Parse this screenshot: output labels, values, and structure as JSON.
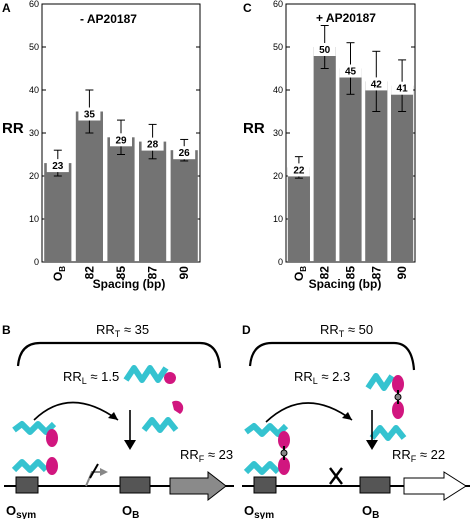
{
  "chart_data": [
    {
      "type": "bar",
      "panel": "A",
      "title": "- AP20187",
      "ylabel": "RR",
      "xlabel": "Spacing (bp)",
      "categories": [
        "O",
        "82",
        "85",
        "87",
        "90"
      ],
      "category_subscripts": [
        "B",
        "",
        "",
        "",
        ""
      ],
      "values": [
        23,
        35,
        29,
        28,
        26
      ],
      "errors": [
        3,
        5,
        4,
        4,
        2.5
      ],
      "labels": [
        "23",
        "35",
        "29",
        "28",
        "26"
      ],
      "ylim": [
        0,
        60
      ],
      "yticks": [
        0,
        10,
        20,
        30,
        40,
        50,
        60
      ],
      "bar_color": "#737373"
    },
    {
      "type": "bar",
      "panel": "C",
      "title": "+ AP20187",
      "ylabel": "RR",
      "xlabel": "Spacing (bp)",
      "categories": [
        "O",
        "82",
        "85",
        "87",
        "90"
      ],
      "category_subscripts": [
        "B",
        "",
        "",
        "",
        ""
      ],
      "values": [
        22,
        50,
        45,
        42,
        41
      ],
      "errors": [
        2.5,
        5,
        6,
        7,
        6
      ],
      "labels": [
        "22",
        "50",
        "45",
        "42",
        "41"
      ],
      "ylim": [
        0,
        60
      ],
      "yticks": [
        0,
        10,
        20,
        30,
        40,
        50,
        60
      ],
      "bar_color": "#737373"
    }
  ],
  "diagrams": [
    {
      "panel": "B",
      "rr_t": "RR",
      "rr_t_sub": "T",
      "rr_t_val": " ≈ 35",
      "rr_l": "RR",
      "rr_l_sub": "L",
      "rr_l_val": " ≈ 1.5",
      "rr_f": "RR",
      "rr_f_sub": "F",
      "rr_f_val": " ≈ 23",
      "osym": "O",
      "osym_sub": "sym",
      "ob": "O",
      "ob_sub": "B"
    },
    {
      "panel": "D",
      "rr_t": "RR",
      "rr_t_sub": "T",
      "rr_t_val": " ≈ 50",
      "rr_l": "RR",
      "rr_l_sub": "L",
      "rr_l_val": " ≈ 2.3",
      "rr_f": "RR",
      "rr_f_sub": "F",
      "rr_f_val": " ≈ 22",
      "osym": "O",
      "osym_sub": "sym",
      "ob": "O",
      "ob_sub": "B"
    }
  ],
  "colors": {
    "helix": "#35c3d0",
    "helix_dark": "#1f8f9a",
    "head": "#d1167f",
    "bar": "#737373",
    "box": "#555555"
  }
}
